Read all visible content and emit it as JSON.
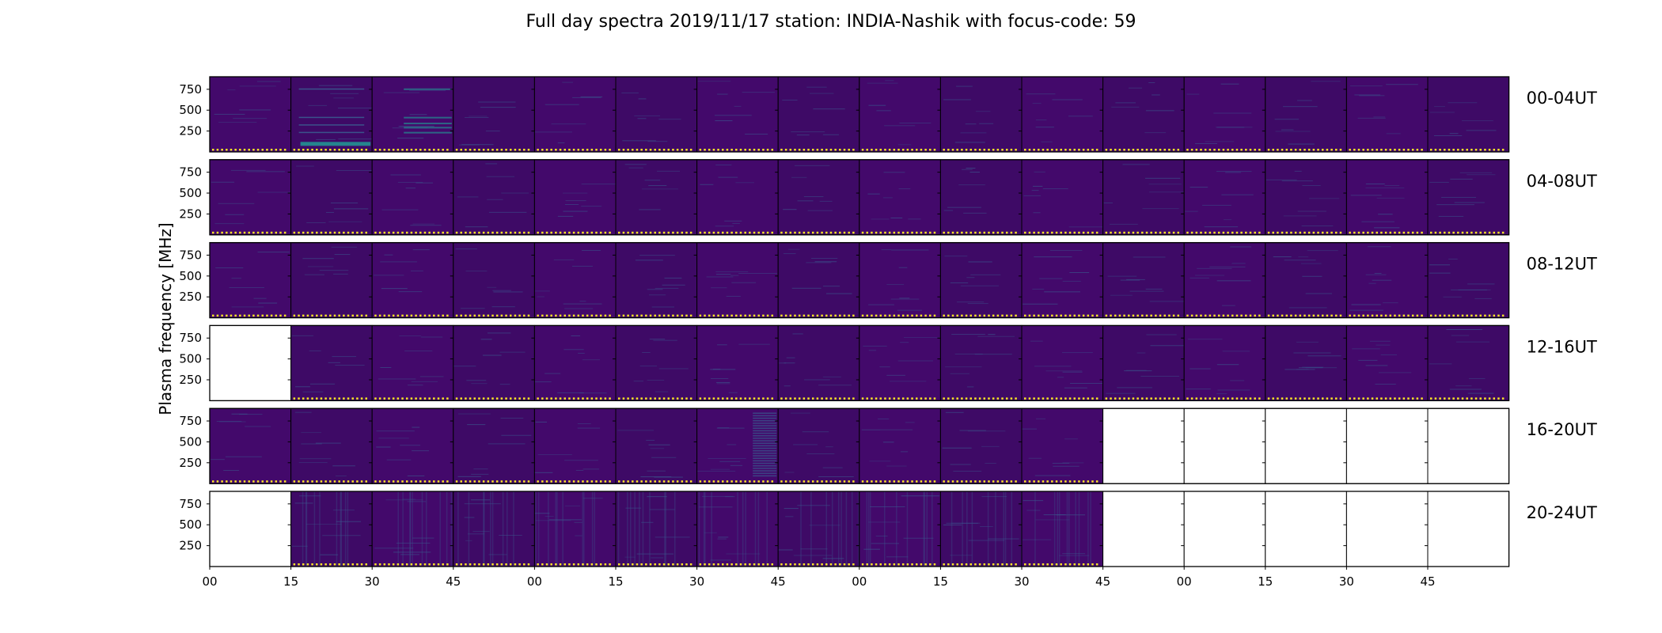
{
  "chart_data": {
    "type": "heatmap",
    "title": "Full day spectra 2019/11/17 station: INDIA-Nashik with focus-code: 59",
    "ylabel": "Plasma frequency [MHz]",
    "xlabel": "",
    "y_ticks": [
      "250",
      "500",
      "750"
    ],
    "ylim": [
      0,
      900
    ],
    "x_tick_labels": [
      "00",
      "15",
      "30",
      "45",
      "00",
      "15",
      "30",
      "45",
      "00",
      "15",
      "30",
      "45",
      "00",
      "15",
      "30",
      "45"
    ],
    "panels_per_row": 16,
    "rows": [
      {
        "label": "00-04UT",
        "available": [
          1,
          1,
          1,
          1,
          1,
          1,
          1,
          1,
          1,
          1,
          1,
          1,
          1,
          1,
          1,
          1
        ]
      },
      {
        "label": "04-08UT",
        "available": [
          1,
          1,
          1,
          1,
          1,
          1,
          1,
          1,
          1,
          1,
          1,
          1,
          1,
          1,
          1,
          1
        ]
      },
      {
        "label": "08-12UT",
        "available": [
          1,
          1,
          1,
          1,
          1,
          1,
          1,
          1,
          1,
          1,
          1,
          1,
          1,
          1,
          1,
          1
        ]
      },
      {
        "label": "12-16UT",
        "available": [
          0,
          1,
          1,
          1,
          1,
          1,
          1,
          1,
          1,
          1,
          1,
          1,
          1,
          1,
          1,
          1
        ]
      },
      {
        "label": "16-20UT",
        "available": [
          1,
          1,
          1,
          1,
          1,
          1,
          1,
          1,
          1,
          1,
          1,
          0,
          0,
          0,
          0,
          0
        ]
      },
      {
        "label": "20-24UT",
        "available": [
          0,
          1,
          1,
          1,
          1,
          1,
          1,
          1,
          1,
          1,
          1,
          0,
          0,
          0,
          0,
          0
        ]
      }
    ],
    "colors": {
      "background": "#43096b",
      "background_alt": "#3e0a66",
      "streak": "#3b528b",
      "streak_bright": "#25848e",
      "marker": "#fde725",
      "empty": "#ffffff",
      "frame": "#000000"
    }
  }
}
